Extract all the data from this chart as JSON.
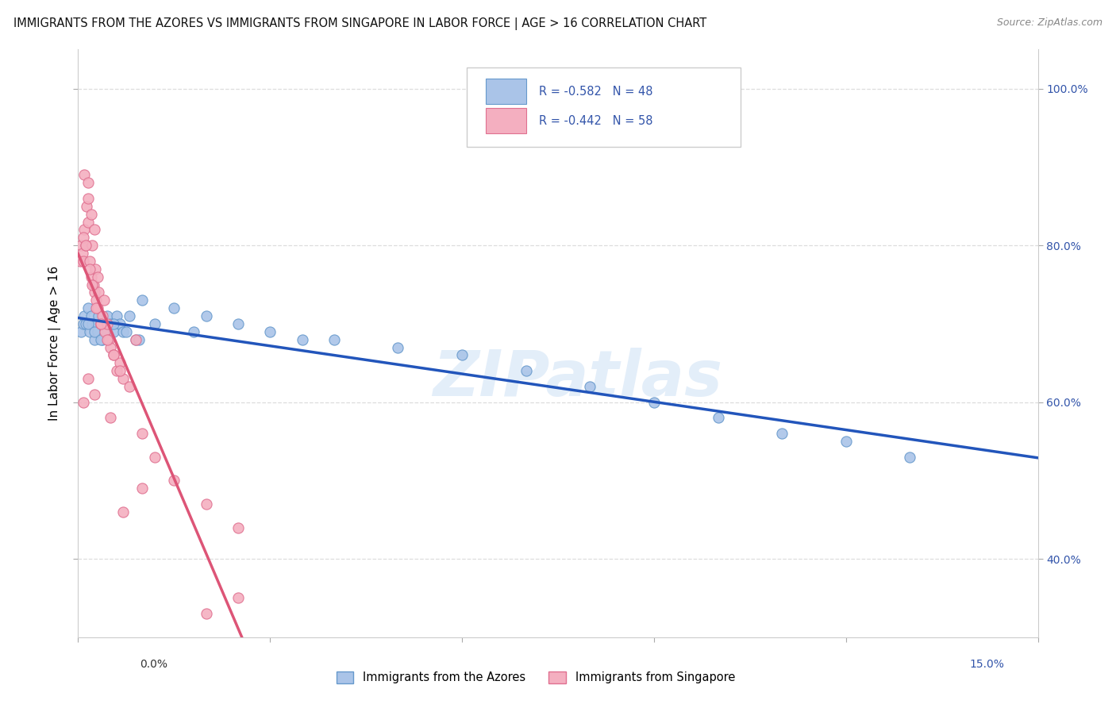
{
  "title": "IMMIGRANTS FROM THE AZORES VS IMMIGRANTS FROM SINGAPORE IN LABOR FORCE | AGE > 16 CORRELATION CHART",
  "source": "Source: ZipAtlas.com",
  "ylabel": "In Labor Force | Age > 16",
  "xlim": [
    0.0,
    15.0
  ],
  "ylim": [
    30.0,
    105.0
  ],
  "azores_color": "#aac4e8",
  "azores_edge_color": "#6699cc",
  "singapore_color": "#f4afc0",
  "singapore_edge_color": "#e07090",
  "azores_R": -0.582,
  "azores_N": 48,
  "singapore_R": -0.442,
  "singapore_N": 58,
  "legend_R_color": "#3355aa",
  "trend_azores_color": "#2255bb",
  "trend_singapore_color": "#dd5577",
  "trend_dashed_color": "#ddb0bc",
  "azores_scatter_x": [
    0.05,
    0.08,
    0.1,
    0.12,
    0.15,
    0.18,
    0.2,
    0.22,
    0.25,
    0.28,
    0.3,
    0.32,
    0.35,
    0.38,
    0.4,
    0.42,
    0.45,
    0.5,
    0.55,
    0.6,
    0.65,
    0.7,
    0.8,
    0.9,
    1.0,
    1.2,
    1.5,
    1.8,
    2.0,
    2.5,
    3.0,
    3.5,
    4.0,
    5.0,
    6.0,
    7.0,
    8.0,
    9.0,
    10.0,
    11.0,
    12.0,
    13.0,
    0.15,
    0.25,
    0.35,
    0.55,
    0.75,
    0.95
  ],
  "azores_scatter_y": [
    69,
    70,
    71,
    70,
    72,
    69,
    71,
    70,
    68,
    70,
    69,
    71,
    70,
    68,
    70,
    69,
    71,
    70,
    69,
    71,
    70,
    69,
    71,
    68,
    73,
    70,
    72,
    69,
    71,
    70,
    69,
    68,
    68,
    67,
    66,
    64,
    62,
    60,
    58,
    56,
    55,
    53,
    70,
    69,
    68,
    70,
    69,
    68
  ],
  "singapore_scatter_x": [
    0.03,
    0.05,
    0.07,
    0.08,
    0.1,
    0.12,
    0.13,
    0.15,
    0.16,
    0.18,
    0.2,
    0.22,
    0.24,
    0.25,
    0.27,
    0.28,
    0.3,
    0.32,
    0.35,
    0.38,
    0.4,
    0.42,
    0.45,
    0.48,
    0.5,
    0.55,
    0.6,
    0.65,
    0.7,
    0.8,
    0.9,
    1.0,
    1.2,
    1.5,
    2.0,
    2.5,
    0.1,
    0.15,
    0.2,
    0.25,
    0.3,
    0.08,
    0.12,
    0.18,
    0.22,
    0.28,
    0.35,
    0.45,
    0.55,
    0.65,
    0.15,
    0.25,
    0.08,
    2.5,
    0.5,
    0.7,
    1.0,
    2.0
  ],
  "singapore_scatter_y": [
    78,
    80,
    79,
    78,
    82,
    80,
    85,
    83,
    86,
    78,
    76,
    80,
    75,
    74,
    77,
    73,
    72,
    74,
    70,
    71,
    73,
    69,
    70,
    68,
    67,
    66,
    64,
    65,
    63,
    62,
    68,
    56,
    53,
    50,
    47,
    44,
    89,
    88,
    84,
    82,
    76,
    81,
    80,
    77,
    75,
    72,
    70,
    68,
    66,
    64,
    63,
    61,
    60,
    35,
    58,
    46,
    49,
    33
  ],
  "watermark": "ZIPatlas",
  "grid_color": "#dddddd",
  "yticks": [
    40,
    60,
    80,
    100
  ],
  "yticklabels": [
    "40.0%",
    "60.0%",
    "80.0%",
    "100.0%"
  ]
}
